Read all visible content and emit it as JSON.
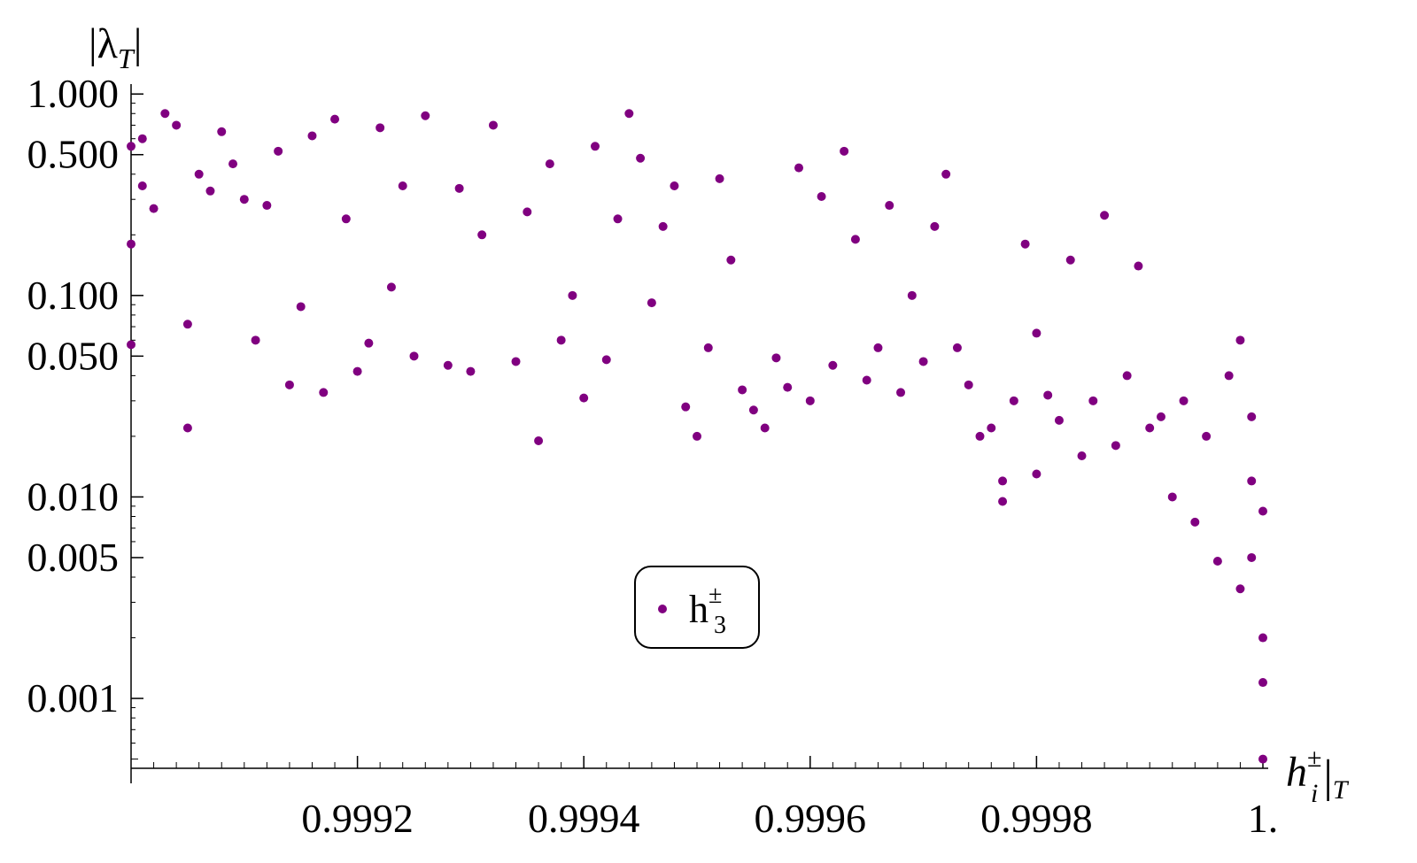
{
  "chart_data": {
    "type": "scatter",
    "title": "",
    "xlabel": {
      "base": "h",
      "sup": "±",
      "sub": "i",
      "tail": "|",
      "tail_sub": "T"
    },
    "ylabel": {
      "text": "|λ",
      "sub": "T",
      "tail": "|"
    },
    "xlim": [
      0.999,
      1.0
    ],
    "ylim": [
      0.0005,
      1.1
    ],
    "yscale": "log",
    "grid": false,
    "legend_placement": "center-bottom",
    "color": "#800080",
    "x_ticks": [
      {
        "value": 0.9992,
        "label": "0.9992"
      },
      {
        "value": 0.9994,
        "label": "0.9994"
      },
      {
        "value": 0.9996,
        "label": "0.9996"
      },
      {
        "value": 0.9998,
        "label": "0.9998"
      },
      {
        "value": 1.0,
        "label": "1."
      }
    ],
    "y_ticks": [
      {
        "value": 1.0,
        "label": "1.000"
      },
      {
        "value": 0.5,
        "label": "0.500"
      },
      {
        "value": 0.1,
        "label": "0.100"
      },
      {
        "value": 0.05,
        "label": "0.050"
      },
      {
        "value": 0.01,
        "label": "0.010"
      },
      {
        "value": 0.005,
        "label": "0.005"
      },
      {
        "value": 0.001,
        "label": "0.001"
      }
    ],
    "series": [
      {
        "name": "h3±",
        "legend": {
          "base": "h",
          "sup": "±",
          "sub": "3"
        },
        "points": [
          [
            0.999,
            0.55
          ],
          [
            0.999,
            0.18
          ],
          [
            0.999,
            0.057
          ],
          [
            0.99901,
            0.6
          ],
          [
            0.99901,
            0.35
          ],
          [
            0.99902,
            0.27
          ],
          [
            0.99903,
            0.8
          ],
          [
            0.99904,
            0.7
          ],
          [
            0.99905,
            0.022
          ],
          [
            0.99905,
            0.072
          ],
          [
            0.99906,
            0.4
          ],
          [
            0.99907,
            0.33
          ],
          [
            0.99908,
            0.65
          ],
          [
            0.99909,
            0.45
          ],
          [
            0.9991,
            0.3
          ],
          [
            0.99911,
            0.06
          ],
          [
            0.99912,
            0.28
          ],
          [
            0.99913,
            0.52
          ],
          [
            0.99914,
            0.036
          ],
          [
            0.99915,
            0.088
          ],
          [
            0.99916,
            0.62
          ],
          [
            0.99917,
            0.033
          ],
          [
            0.99918,
            0.75
          ],
          [
            0.99919,
            0.24
          ],
          [
            0.9992,
            0.042
          ],
          [
            0.99921,
            0.058
          ],
          [
            0.99922,
            0.68
          ],
          [
            0.99923,
            0.11
          ],
          [
            0.99924,
            0.35
          ],
          [
            0.99925,
            0.05
          ],
          [
            0.99926,
            0.78
          ],
          [
            0.99928,
            0.045
          ],
          [
            0.99929,
            0.34
          ],
          [
            0.9993,
            0.042
          ],
          [
            0.99931,
            0.2
          ],
          [
            0.99932,
            0.7
          ],
          [
            0.99934,
            0.047
          ],
          [
            0.99935,
            0.26
          ],
          [
            0.99936,
            0.019
          ],
          [
            0.99937,
            0.45
          ],
          [
            0.99938,
            0.06
          ],
          [
            0.99939,
            0.1
          ],
          [
            0.9994,
            0.031
          ],
          [
            0.99941,
            0.55
          ],
          [
            0.99942,
            0.048
          ],
          [
            0.99943,
            0.24
          ],
          [
            0.99944,
            0.8
          ],
          [
            0.99945,
            0.48
          ],
          [
            0.99946,
            0.092
          ],
          [
            0.99947,
            0.22
          ],
          [
            0.99948,
            0.35
          ],
          [
            0.99949,
            0.028
          ],
          [
            0.9995,
            0.02
          ],
          [
            0.99951,
            0.055
          ],
          [
            0.99952,
            0.38
          ],
          [
            0.99953,
            0.15
          ],
          [
            0.99954,
            0.034
          ],
          [
            0.99955,
            0.027
          ],
          [
            0.99956,
            0.022
          ],
          [
            0.99957,
            0.049
          ],
          [
            0.99958,
            0.035
          ],
          [
            0.99959,
            0.43
          ],
          [
            0.9996,
            0.03
          ],
          [
            0.99961,
            0.31
          ],
          [
            0.99962,
            0.045
          ],
          [
            0.99963,
            0.52
          ],
          [
            0.99964,
            0.19
          ],
          [
            0.99965,
            0.038
          ],
          [
            0.99966,
            0.055
          ],
          [
            0.99967,
            0.28
          ],
          [
            0.99968,
            0.033
          ],
          [
            0.99969,
            0.1
          ],
          [
            0.9997,
            0.047
          ],
          [
            0.99971,
            0.22
          ],
          [
            0.99972,
            0.4
          ],
          [
            0.99973,
            0.055
          ],
          [
            0.99974,
            0.036
          ],
          [
            0.99975,
            0.02
          ],
          [
            0.99976,
            0.022
          ],
          [
            0.99977,
            0.012
          ],
          [
            0.99977,
            0.0095
          ],
          [
            0.99978,
            0.03
          ],
          [
            0.99979,
            0.18
          ],
          [
            0.9998,
            0.065
          ],
          [
            0.9998,
            0.013
          ],
          [
            0.99981,
            0.032
          ],
          [
            0.99982,
            0.024
          ],
          [
            0.99983,
            0.15
          ],
          [
            0.99984,
            0.016
          ],
          [
            0.99985,
            0.03
          ],
          [
            0.99986,
            0.25
          ],
          [
            0.99987,
            0.018
          ],
          [
            0.99988,
            0.04
          ],
          [
            0.99989,
            0.14
          ],
          [
            0.9999,
            0.022
          ],
          [
            0.99991,
            0.025
          ],
          [
            0.99992,
            0.01
          ],
          [
            0.99993,
            0.03
          ],
          [
            0.99994,
            0.0075
          ],
          [
            0.99995,
            0.02
          ],
          [
            0.99996,
            0.0048
          ],
          [
            0.99997,
            0.04
          ],
          [
            0.99998,
            0.0035
          ],
          [
            0.99998,
            0.06
          ],
          [
            0.99999,
            0.005
          ],
          [
            0.99999,
            0.025
          ],
          [
            0.99999,
            0.012
          ],
          [
            1.0,
            0.002
          ],
          [
            1.0,
            0.0012
          ],
          [
            1.0,
            0.0085
          ],
          [
            1.0,
            0.0005
          ]
        ]
      }
    ]
  }
}
